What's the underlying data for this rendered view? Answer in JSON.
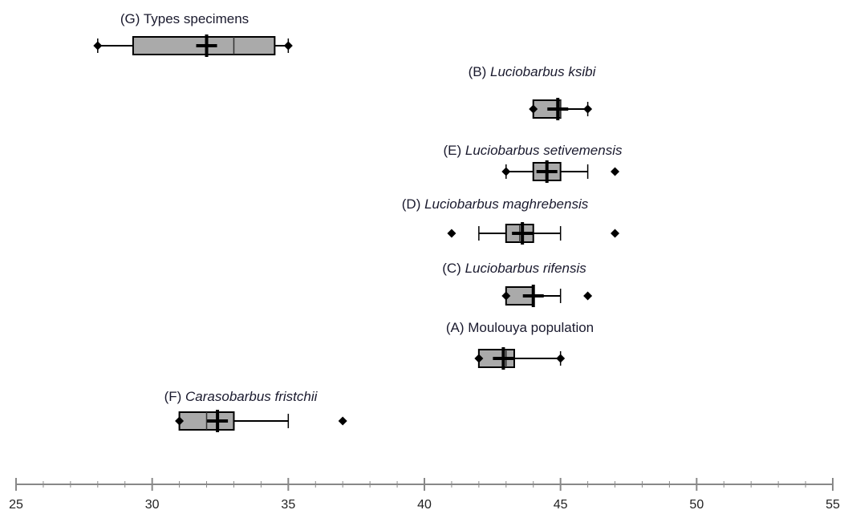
{
  "chart_data": {
    "type": "boxplot",
    "title": "",
    "xlabel": "",
    "ylabel": "",
    "xlim": [
      25,
      55
    ],
    "x_ticks": [
      "25",
      "30",
      "35",
      "40",
      "45",
      "50",
      "55"
    ],
    "colors": {
      "box_fill": "#aaaaaa",
      "stroke": "#000000",
      "axis": "#888888"
    },
    "groups": [
      {
        "prefix": "(G) ",
        "name": "Types specimens",
        "italic": false,
        "min": 28,
        "q1": 29.3,
        "median": 33,
        "q3": 34.5,
        "max": 35,
        "mean": 32,
        "whisker_low": 28,
        "whisker_high": 35,
        "outliers": []
      },
      {
        "prefix": "(B) ",
        "name": "Luciobarbus ksibi",
        "italic": true,
        "min": 44,
        "q1": 44,
        "median": 45,
        "q3": 45,
        "max": 46,
        "mean": 44.9,
        "whisker_low": 44,
        "whisker_high": 46,
        "outliers": []
      },
      {
        "prefix": "(E) ",
        "name": "Luciobarbus setivemensis",
        "italic": true,
        "min": 43,
        "q1": 44,
        "median": 44.5,
        "q3": 45,
        "max": 47,
        "mean": 44.5,
        "whisker_low": 43,
        "whisker_high": 46,
        "outliers": [
          47
        ]
      },
      {
        "prefix": "(D) ",
        "name": "Luciobarbus maghrebensis",
        "italic": true,
        "min": 41,
        "q1": 43,
        "median": 43.5,
        "q3": 44,
        "max": 47,
        "mean": 43.6,
        "whisker_low": 42,
        "whisker_high": 45,
        "outliers": [
          41,
          47
        ]
      },
      {
        "prefix": "(C) ",
        "name": "Luciobarbus rifensis",
        "italic": true,
        "min": 43,
        "q1": 43,
        "median": 44,
        "q3": 44,
        "max": 46,
        "mean": 44,
        "whisker_low": 43,
        "whisker_high": 45,
        "outliers": [
          46
        ]
      },
      {
        "prefix": "(A) ",
        "name": "Moulouya population",
        "italic": false,
        "min": 42,
        "q1": 42,
        "median": 43,
        "q3": 43.3,
        "max": 45,
        "mean": 42.9,
        "whisker_low": 42,
        "whisker_high": 45,
        "outliers": []
      },
      {
        "prefix": "(F) ",
        "name": "Carasobarbus fristchii",
        "italic": true,
        "min": 31,
        "q1": 31,
        "median": 32,
        "q3": 33,
        "max": 37,
        "mean": 32.4,
        "whisker_low": 31,
        "whisker_high": 35,
        "outliers": [
          37
        ]
      }
    ]
  }
}
